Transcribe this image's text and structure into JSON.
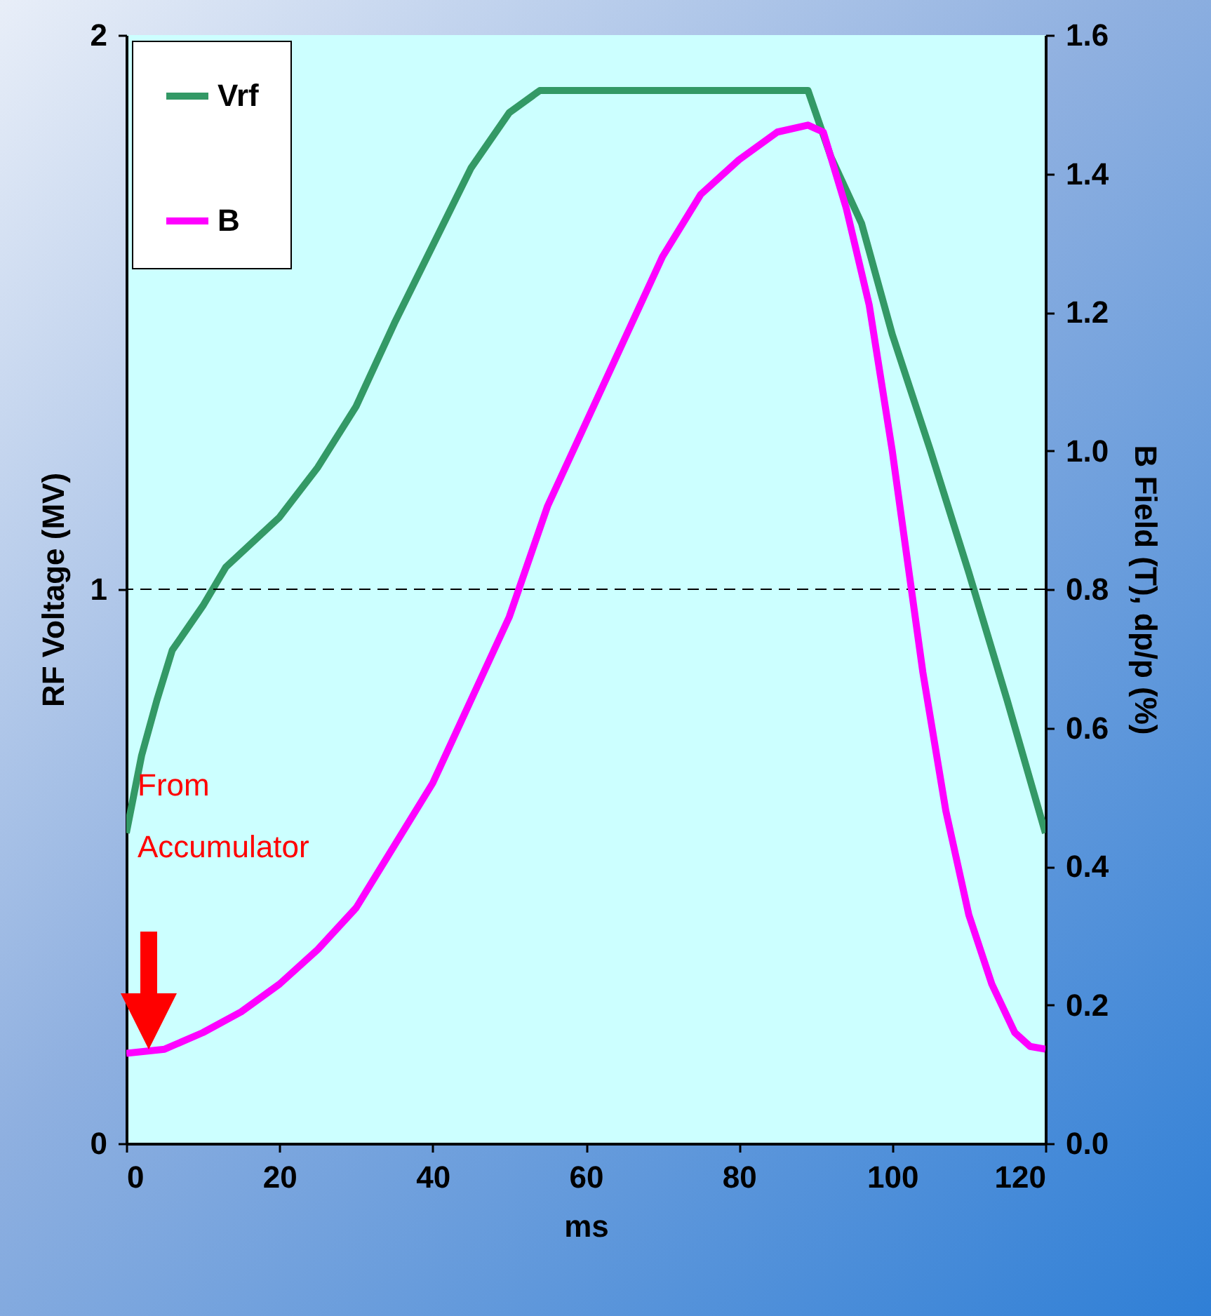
{
  "chart_data": {
    "type": "line",
    "xlabel": "ms",
    "ylabel": "RF Voltage (MV)",
    "y2label": "B Field (T), dp/p (%)",
    "xlim": [
      0,
      120
    ],
    "xticks": [
      0,
      20,
      40,
      60,
      80,
      100,
      120
    ],
    "ylim": [
      0,
      2
    ],
    "yticks": [
      0,
      1,
      2
    ],
    "y2lim": [
      0,
      1.6
    ],
    "y2ticks": [
      {
        "value": 0,
        "label": "0.0"
      },
      0.2,
      0.4,
      0.6,
      0.8,
      {
        "value": 1,
        "label": "1.0"
      },
      1.2,
      1.4,
      1.6
    ],
    "grid": false,
    "legend": "top left",
    "marker": "none",
    "line_style": "solid",
    "ref_lines": [
      {
        "axis": "y",
        "value": 1,
        "line_style": "dashed",
        "color": "#000000"
      }
    ],
    "annotations": [
      "From Accumulator"
    ],
    "series": [
      {
        "name": "Vrf",
        "color": "#339966",
        "x": [
          0,
          2,
          4,
          6,
          10,
          13,
          20,
          25,
          30,
          35,
          40,
          45,
          50,
          54,
          89,
          92,
          96,
          100,
          105,
          110,
          115,
          120
        ],
        "values": [
          0.56,
          0.7,
          0.8,
          0.89,
          0.97,
          1.04,
          1.13,
          1.22,
          1.33,
          1.48,
          1.62,
          1.76,
          1.86,
          1.9,
          1.9,
          1.78,
          1.66,
          1.46,
          1.25,
          1.03,
          0.8,
          0.56
        ]
      },
      {
        "name": "B",
        "color": "#ff00ff",
        "axis": "y2",
        "x": [
          0,
          5,
          10,
          15,
          20,
          25,
          30,
          35,
          40,
          45,
          50,
          55,
          60,
          65,
          70,
          75,
          80,
          85,
          89,
          91,
          94,
          97,
          100,
          102,
          104,
          107,
          110,
          113,
          116,
          118,
          120
        ],
        "values": [
          0.13,
          0.136,
          0.16,
          0.19,
          0.23,
          0.28,
          0.34,
          0.43,
          0.52,
          0.64,
          0.76,
          0.92,
          1.04,
          1.16,
          1.28,
          1.37,
          1.42,
          1.46,
          1.47,
          1.46,
          1.35,
          1.21,
          1.0,
          0.84,
          0.68,
          0.48,
          0.33,
          0.23,
          0.16,
          0.14,
          0.136
        ]
      }
    ]
  }
}
